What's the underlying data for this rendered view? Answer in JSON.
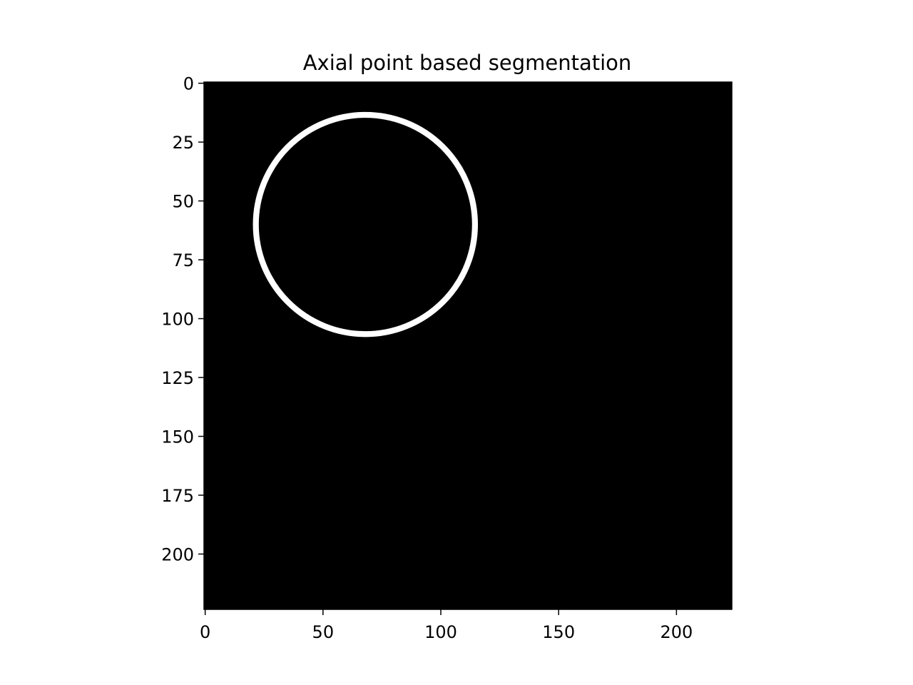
{
  "chart_data": {
    "type": "heatmap",
    "title": "Axial point based segmentation",
    "xlabel": "",
    "ylabel": "",
    "image_size": [
      224,
      224
    ],
    "xlim": [
      -0.5,
      223.5
    ],
    "ylim": [
      223.5,
      -0.5
    ],
    "x_ticks": [
      0,
      50,
      100,
      150,
      200
    ],
    "y_ticks": [
      0,
      25,
      50,
      75,
      100,
      125,
      150,
      175,
      200
    ],
    "colormap": "gray",
    "background_value": 0,
    "foreground_value": 1,
    "grid": false,
    "legend": "none",
    "segmentation_contour": {
      "shape": "circle",
      "center": [
        68,
        60
      ],
      "radius": 46.5,
      "thickness": 2.5
    }
  },
  "colors": {
    "background": "#000000",
    "foreground": "#ffffff",
    "axes": "#000000"
  }
}
